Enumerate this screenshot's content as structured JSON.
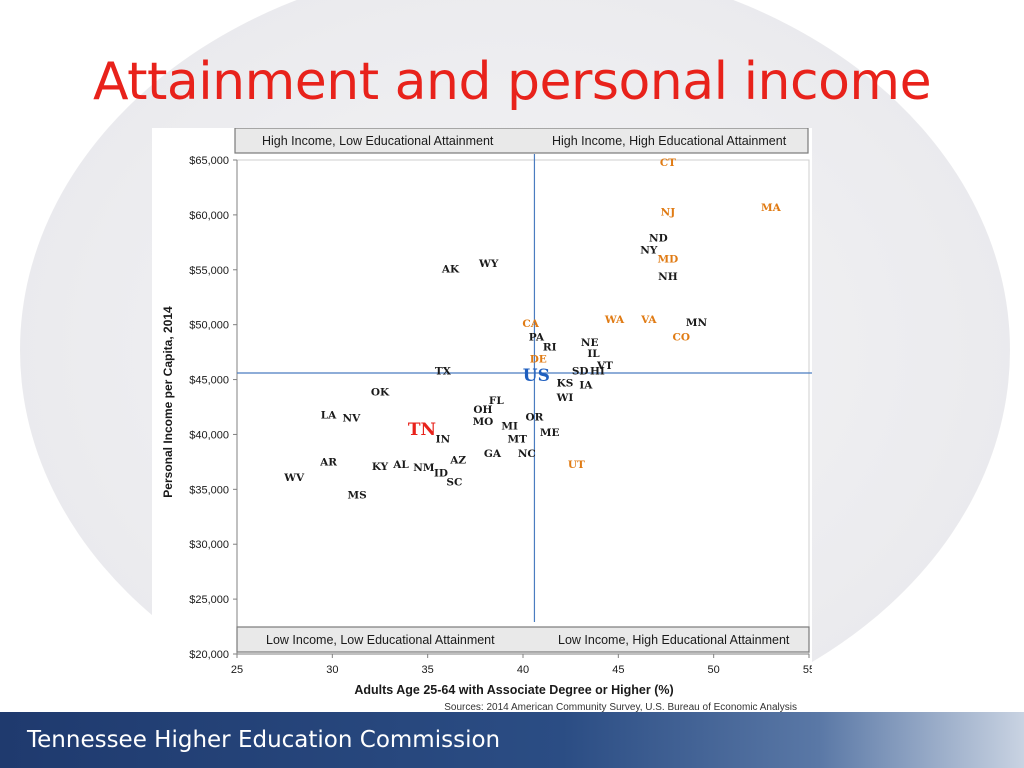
{
  "slide": {
    "title": "Attainment and personal income",
    "footer": "Tennessee Higher Education Commission"
  },
  "colors": {
    "title": "#e8221b",
    "default_label": "#1a1a1a",
    "orange_label": "#e07b14",
    "highlight_tn": "#e8221b",
    "highlight_us": "#1f5fbf",
    "quadrant_line": "#4a7cc0"
  },
  "chart_data": {
    "type": "scatter",
    "xlabel": "Adults Age 25-64 with Associate Degree or Higher (%)",
    "ylabel": "Personal Income per Capita, 2014",
    "xlim": [
      25,
      55
    ],
    "ylim": [
      20000,
      65000
    ],
    "x_ticks": [
      25,
      30,
      35,
      40,
      45,
      50,
      55
    ],
    "y_ticks": [
      20000,
      25000,
      30000,
      35000,
      40000,
      45000,
      50000,
      55000,
      60000,
      65000
    ],
    "y_tick_labels": [
      "$20,000",
      "$25,000",
      "$30,000",
      "$35,000",
      "$40,000",
      "$45,000",
      "$50,000",
      "$55,000",
      "$60,000",
      "$65,000"
    ],
    "grid": false,
    "reference_lines": {
      "x": 40.6,
      "y": 45600
    },
    "quadrant_labels": {
      "top_left": "High Income, Low Educational Attainment",
      "top_right": "High Income, High Educational Attainment",
      "bottom_left": "Low Income, Low Educational Attainment",
      "bottom_right": "Low Income, High Educational Attainment"
    },
    "source": "Sources: 2014 American Community Survey, U.S. Bureau of Economic Analysis",
    "points": [
      {
        "label": "CT",
        "x": 47.6,
        "y": 64800,
        "style": "orange"
      },
      {
        "label": "MA",
        "x": 53.0,
        "y": 60700,
        "style": "orange"
      },
      {
        "label": "NJ",
        "x": 47.6,
        "y": 60300,
        "style": "orange"
      },
      {
        "label": "ND",
        "x": 47.1,
        "y": 57900
      },
      {
        "label": "NY",
        "x": 46.6,
        "y": 56800
      },
      {
        "label": "MD",
        "x": 47.6,
        "y": 56000,
        "style": "orange"
      },
      {
        "label": "NH",
        "x": 47.6,
        "y": 54400
      },
      {
        "label": "WY",
        "x": 38.2,
        "y": 55600
      },
      {
        "label": "AK",
        "x": 36.2,
        "y": 55100
      },
      {
        "label": "WA",
        "x": 44.8,
        "y": 50500,
        "style": "orange"
      },
      {
        "label": "VA",
        "x": 46.6,
        "y": 50500,
        "style": "orange"
      },
      {
        "label": "MN",
        "x": 49.1,
        "y": 50200
      },
      {
        "label": "CA",
        "x": 40.4,
        "y": 50100,
        "style": "orange"
      },
      {
        "label": "CO",
        "x": 48.3,
        "y": 48900,
        "style": "orange"
      },
      {
        "label": "PA",
        "x": 40.7,
        "y": 48900
      },
      {
        "label": "RI",
        "x": 41.4,
        "y": 48000
      },
      {
        "label": "NE",
        "x": 43.5,
        "y": 48400
      },
      {
        "label": "IL",
        "x": 43.7,
        "y": 47400
      },
      {
        "label": "DE",
        "x": 40.8,
        "y": 46900,
        "style": "orange"
      },
      {
        "label": "VT",
        "x": 44.3,
        "y": 46300
      },
      {
        "label": "SD",
        "x": 43.0,
        "y": 45800
      },
      {
        "label": "HI",
        "x": 43.9,
        "y": 45800
      },
      {
        "label": "US",
        "x": 40.7,
        "y": 45400,
        "style": "us"
      },
      {
        "label": "TX",
        "x": 35.8,
        "y": 45800
      },
      {
        "label": "KS",
        "x": 42.2,
        "y": 44700
      },
      {
        "label": "IA",
        "x": 43.3,
        "y": 44500
      },
      {
        "label": "WI",
        "x": 42.2,
        "y": 43400
      },
      {
        "label": "OK",
        "x": 32.5,
        "y": 43900
      },
      {
        "label": "FL",
        "x": 38.6,
        "y": 43100
      },
      {
        "label": "OH",
        "x": 37.9,
        "y": 42300
      },
      {
        "label": "MO",
        "x": 37.9,
        "y": 41200
      },
      {
        "label": "OR",
        "x": 40.6,
        "y": 41600
      },
      {
        "label": "LA",
        "x": 29.8,
        "y": 41800
      },
      {
        "label": "NV",
        "x": 31.0,
        "y": 41500
      },
      {
        "label": "TN",
        "x": 34.7,
        "y": 40500,
        "style": "tn"
      },
      {
        "label": "MI",
        "x": 39.3,
        "y": 40800
      },
      {
        "label": "ME",
        "x": 41.4,
        "y": 40200
      },
      {
        "label": "MT",
        "x": 39.7,
        "y": 39600
      },
      {
        "label": "IN",
        "x": 35.8,
        "y": 39600
      },
      {
        "label": "GA",
        "x": 38.4,
        "y": 38300
      },
      {
        "label": "NC",
        "x": 40.2,
        "y": 38300
      },
      {
        "label": "AZ",
        "x": 36.6,
        "y": 37700
      },
      {
        "label": "UT",
        "x": 42.8,
        "y": 37300,
        "style": "orange"
      },
      {
        "label": "AR",
        "x": 29.8,
        "y": 37500
      },
      {
        "label": "KY",
        "x": 32.5,
        "y": 37100
      },
      {
        "label": "AL",
        "x": 33.6,
        "y": 37300
      },
      {
        "label": "NM",
        "x": 34.8,
        "y": 37000
      },
      {
        "label": "ID",
        "x": 35.7,
        "y": 36500
      },
      {
        "label": "SC",
        "x": 36.4,
        "y": 35700
      },
      {
        "label": "WV",
        "x": 28.0,
        "y": 36100
      },
      {
        "label": "MS",
        "x": 31.3,
        "y": 34500
      }
    ]
  }
}
